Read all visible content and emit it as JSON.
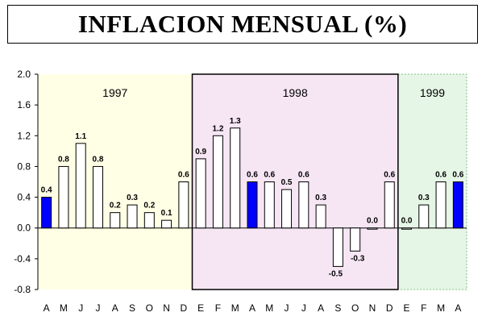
{
  "chart_data": {
    "type": "bar",
    "title": "INFLACION MENSUAL (%)",
    "xlabel": "",
    "ylabel": "",
    "ylim": [
      -0.8,
      2.0
    ],
    "yticks": [
      2.0,
      1.6,
      1.2,
      0.8,
      0.4,
      0.0,
      -0.4,
      -0.8
    ],
    "ytick_labels": [
      "2.0",
      "1.6",
      "1.2",
      "0.8",
      "0.4",
      "0.0",
      "-0.4",
      "-0.8"
    ],
    "categories": [
      "A",
      "M",
      "J",
      "J",
      "A",
      "S",
      "O",
      "N",
      "D",
      "E",
      "F",
      "M",
      "A",
      "M",
      "J",
      "J",
      "A",
      "S",
      "O",
      "N",
      "D",
      "E",
      "F",
      "M",
      "A"
    ],
    "values": [
      0.4,
      0.8,
      1.1,
      0.8,
      0.2,
      0.3,
      0.2,
      0.1,
      0.6,
      0.9,
      1.2,
      1.3,
      0.6,
      0.6,
      0.5,
      0.6,
      0.3,
      -0.5,
      -0.3,
      0.0,
      0.6,
      0.0,
      0.3,
      0.6,
      0.6
    ],
    "value_labels": [
      "0.4",
      "0.8",
      "1.1",
      "0.8",
      "0.2",
      "0.3",
      "0.2",
      "0.1",
      "0.6",
      "0.9",
      "1.2",
      "1.3",
      "0.6",
      "0.6",
      "0.5",
      "0.6",
      "0.3",
      "-0.5",
      "-0.3",
      "0.0",
      "0.6",
      "0.0",
      "0.3",
      "0.6",
      "0.6"
    ],
    "highlighted": [
      true,
      false,
      false,
      false,
      false,
      false,
      false,
      false,
      false,
      false,
      false,
      false,
      true,
      false,
      false,
      false,
      false,
      false,
      false,
      false,
      false,
      false,
      false,
      false,
      true
    ],
    "periods": [
      {
        "label": "1997",
        "start_index": 0,
        "end_index": 8,
        "color": "#ffffe6"
      },
      {
        "label": "1998",
        "start_index": 9,
        "end_index": 20,
        "color": "#f6e6f4"
      },
      {
        "label": "1999",
        "start_index": 21,
        "end_index": 24,
        "color": "#e6f6e6"
      }
    ],
    "colors": {
      "bar": "#ffffff",
      "highlight": "#0000ff",
      "edge": "#000000"
    }
  }
}
